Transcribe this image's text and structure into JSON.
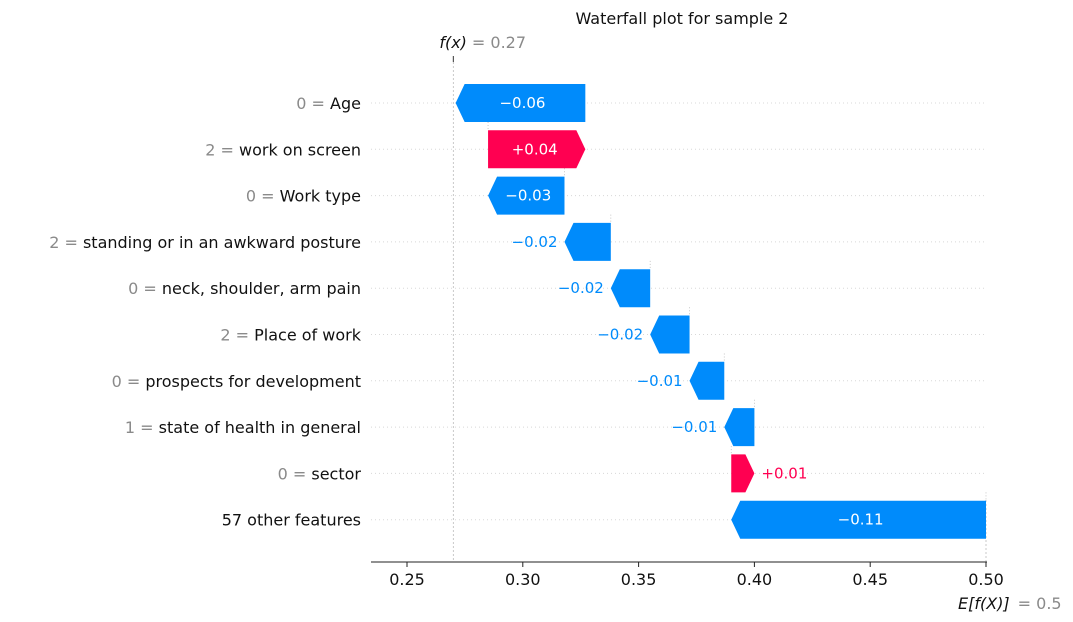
{
  "chart_data": {
    "type": "bar",
    "subtype": "waterfall",
    "title": "Waterfall plot for sample 2",
    "fx_label": "f(x)",
    "fx_value": 0.27,
    "fx_value_text": "= 0.27",
    "base_label": "E[f(X)]",
    "base_value": 0.5,
    "base_value_text": "= 0.5",
    "features": [
      {
        "value_text": "0 =",
        "name": "Age",
        "contribution": -0.06,
        "label": "−0.06",
        "start": 0.327,
        "end": 0.271
      },
      {
        "value_text": "2 =",
        "name": "work on screen",
        "contribution": 0.04,
        "label": "+0.04",
        "start": 0.285,
        "end": 0.327
      },
      {
        "value_text": "0 =",
        "name": "Work type",
        "contribution": -0.03,
        "label": "−0.03",
        "start": 0.318,
        "end": 0.285
      },
      {
        "value_text": "2 =",
        "name": "standing or in an awkward posture",
        "contribution": -0.02,
        "label": "−0.02",
        "start": 0.338,
        "end": 0.318
      },
      {
        "value_text": "0 =",
        "name": "neck, shoulder, arm pain",
        "contribution": -0.02,
        "label": "−0.02",
        "start": 0.355,
        "end": 0.338
      },
      {
        "value_text": "2 =",
        "name": "Place of work",
        "contribution": -0.02,
        "label": "−0.02",
        "start": 0.372,
        "end": 0.355
      },
      {
        "value_text": "0 =",
        "name": "prospects for development",
        "contribution": -0.01,
        "label": "−0.01",
        "start": 0.387,
        "end": 0.372
      },
      {
        "value_text": "1 =",
        "name": "state of health in general",
        "contribution": -0.01,
        "label": "−0.01",
        "start": 0.4,
        "end": 0.387
      },
      {
        "value_text": "0 =",
        "name": "sector",
        "contribution": 0.01,
        "label": "+0.01",
        "start": 0.39,
        "end": 0.4
      },
      {
        "value_text": "",
        "name": "57 other features",
        "contribution": -0.11,
        "label": "−0.11",
        "start": 0.5,
        "end": 0.39
      }
    ],
    "x_ticks": [
      0.25,
      0.3,
      0.35,
      0.4,
      0.45,
      0.5
    ],
    "x_tick_labels": [
      "0.25",
      "0.30",
      "0.35",
      "0.40",
      "0.45",
      "0.50"
    ],
    "xlim": [
      0.232,
      0.5
    ],
    "grid": "dotted horizontal row lines",
    "colors": {
      "negative": "#008bfb",
      "positive": "#ff0051",
      "label_muted": "#8a8a8a"
    }
  }
}
